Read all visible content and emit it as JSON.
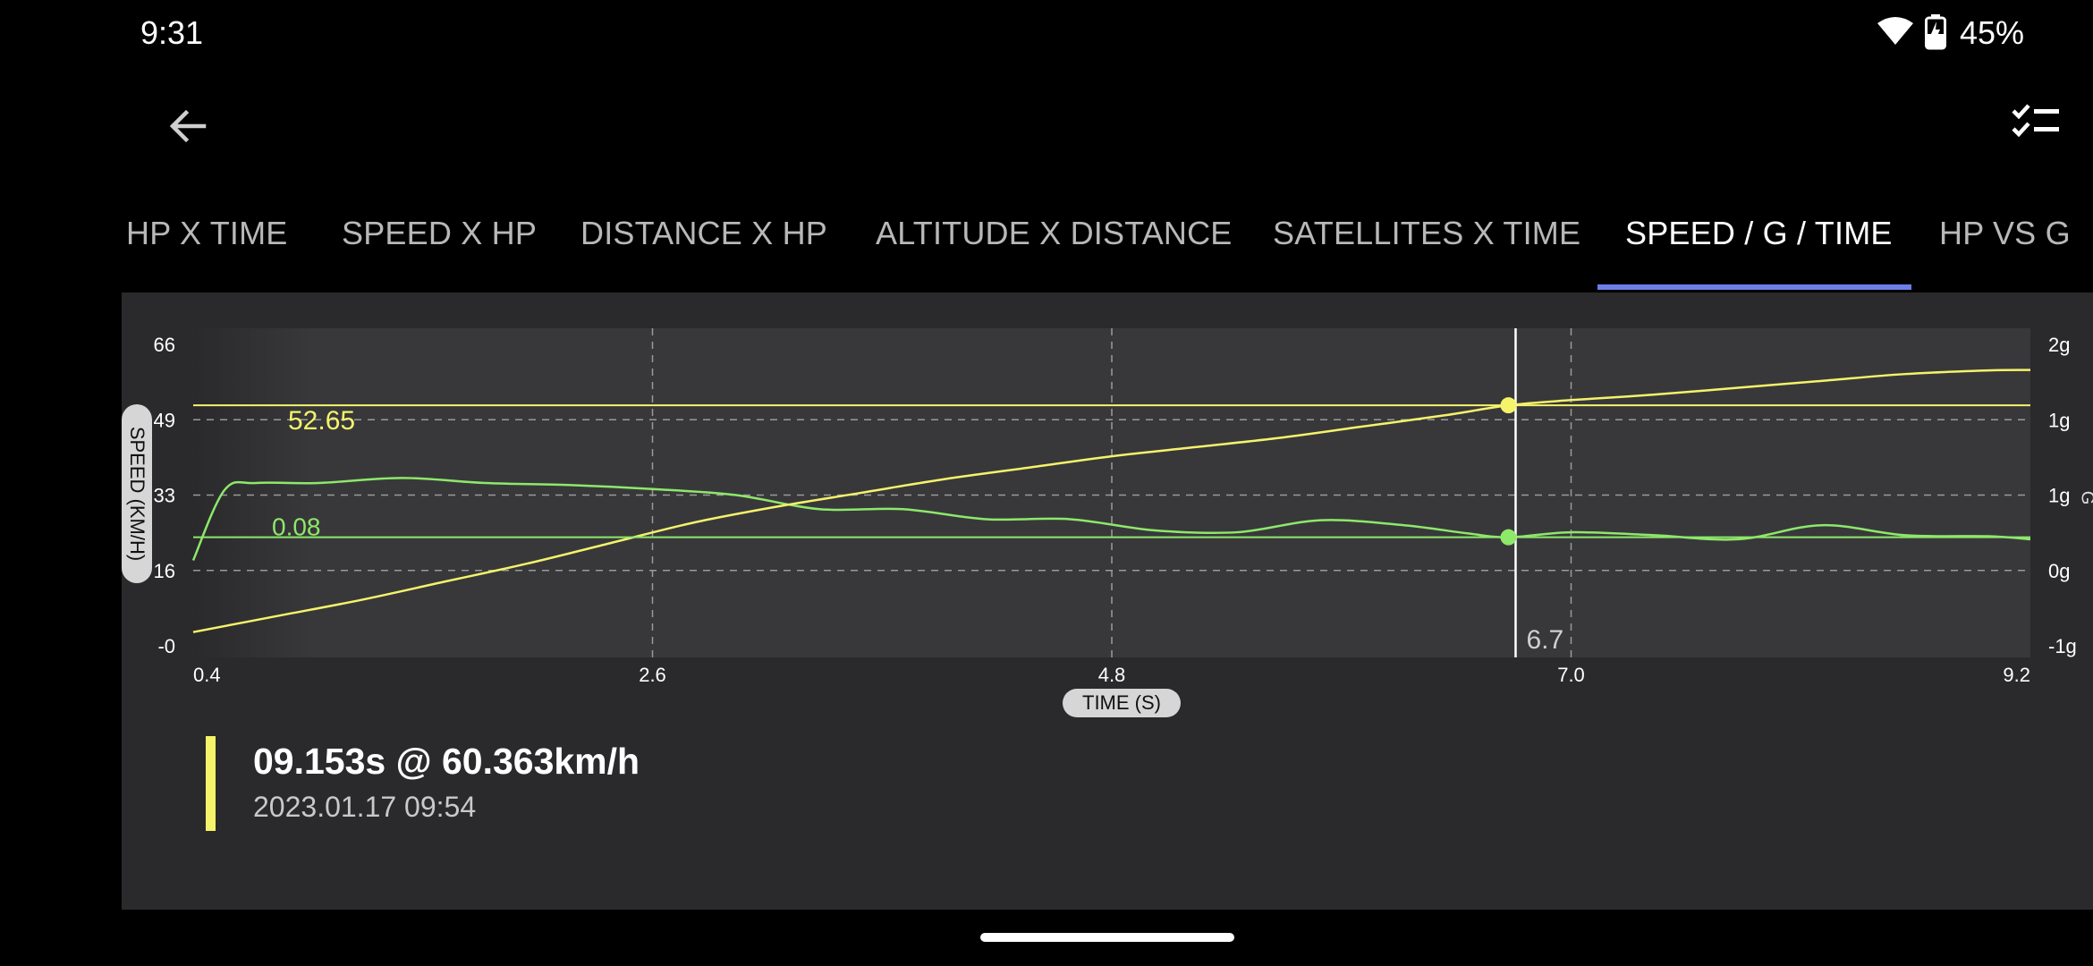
{
  "status_bar": {
    "time": "9:31",
    "battery": "45%",
    "icons": [
      "wifi-icon",
      "battery-charging-icon"
    ]
  },
  "app_bar": {
    "back_icon": "arrow-back-icon",
    "action_icon": "checklist-icon"
  },
  "tabs": [
    {
      "label": "HP X TIME",
      "active": false
    },
    {
      "label": "SPEED X HP",
      "active": false
    },
    {
      "label": "DISTANCE X HP",
      "active": false
    },
    {
      "label": "ALTITUDE X DISTANCE",
      "active": false
    },
    {
      "label": "SATELLITES X TIME",
      "active": false
    },
    {
      "label": "SPEED / G / TIME",
      "active": true
    },
    {
      "label": "HP VS G",
      "active": false
    }
  ],
  "colors": {
    "accent": "#6b7fe6",
    "speed_series": "#f5f36a",
    "g_series": "#8ee86a",
    "panel": "#2a2a2c"
  },
  "chart_data": {
    "type": "line",
    "xlabel": "TIME (S)",
    "ylabel": "SPEED (KM/H)",
    "y2label": "G",
    "xlim": [
      0.4,
      9.2
    ],
    "ylim": [
      0,
      66
    ],
    "y2lim": [
      -1,
      2
    ],
    "x_ticks": [
      "0.4",
      "2.6",
      "4.8",
      "7.0",
      "9.2"
    ],
    "y_ticks": [
      "66",
      "49",
      "33",
      "16",
      "-0"
    ],
    "y2_ticks": [
      "2g",
      "1g",
      "1g",
      "0g",
      "-1g"
    ],
    "grid": true,
    "cursor": {
      "x": 6.7,
      "label": "6.7",
      "speed_value": "52.65",
      "g_value": "0.08"
    },
    "series": [
      {
        "axis": "left",
        "x": [
          0.4,
          0.8,
          1.2,
          1.6,
          2.0,
          2.4,
          2.8,
          3.2,
          3.6,
          4.0,
          4.4,
          4.8,
          5.2,
          5.6,
          6.0,
          6.4,
          6.7,
          7.0,
          7.4,
          7.8,
          8.2,
          8.6,
          9.0,
          9.2
        ],
        "values": [
          3,
          6.5,
          10,
          14,
          18,
          22.5,
          27,
          30.5,
          33.5,
          36.5,
          39,
          41.5,
          43.5,
          45.5,
          48,
          50.5,
          52.65,
          53.8,
          55,
          56.5,
          58,
          59.5,
          60.3,
          60.4
        ]
      },
      {
        "axis": "right",
        "x": [
          0.4,
          0.55,
          0.7,
          1.0,
          1.4,
          1.8,
          2.2,
          2.6,
          3.0,
          3.4,
          3.8,
          4.2,
          4.6,
          5.0,
          5.4,
          5.8,
          6.2,
          6.5,
          6.7,
          7.0,
          7.4,
          7.8,
          8.2,
          8.6,
          9.0,
          9.2
        ],
        "values": [
          -0.15,
          0.55,
          0.62,
          0.62,
          0.67,
          0.62,
          0.6,
          0.56,
          0.5,
          0.36,
          0.36,
          0.26,
          0.26,
          0.15,
          0.13,
          0.25,
          0.2,
          0.12,
          0.08,
          0.13,
          0.1,
          0.06,
          0.2,
          0.1,
          0.09,
          0.06
        ]
      }
    ]
  },
  "summary": {
    "headline": "09.153s @ 60.363km/h",
    "date": "2023.01.17 09:54"
  }
}
